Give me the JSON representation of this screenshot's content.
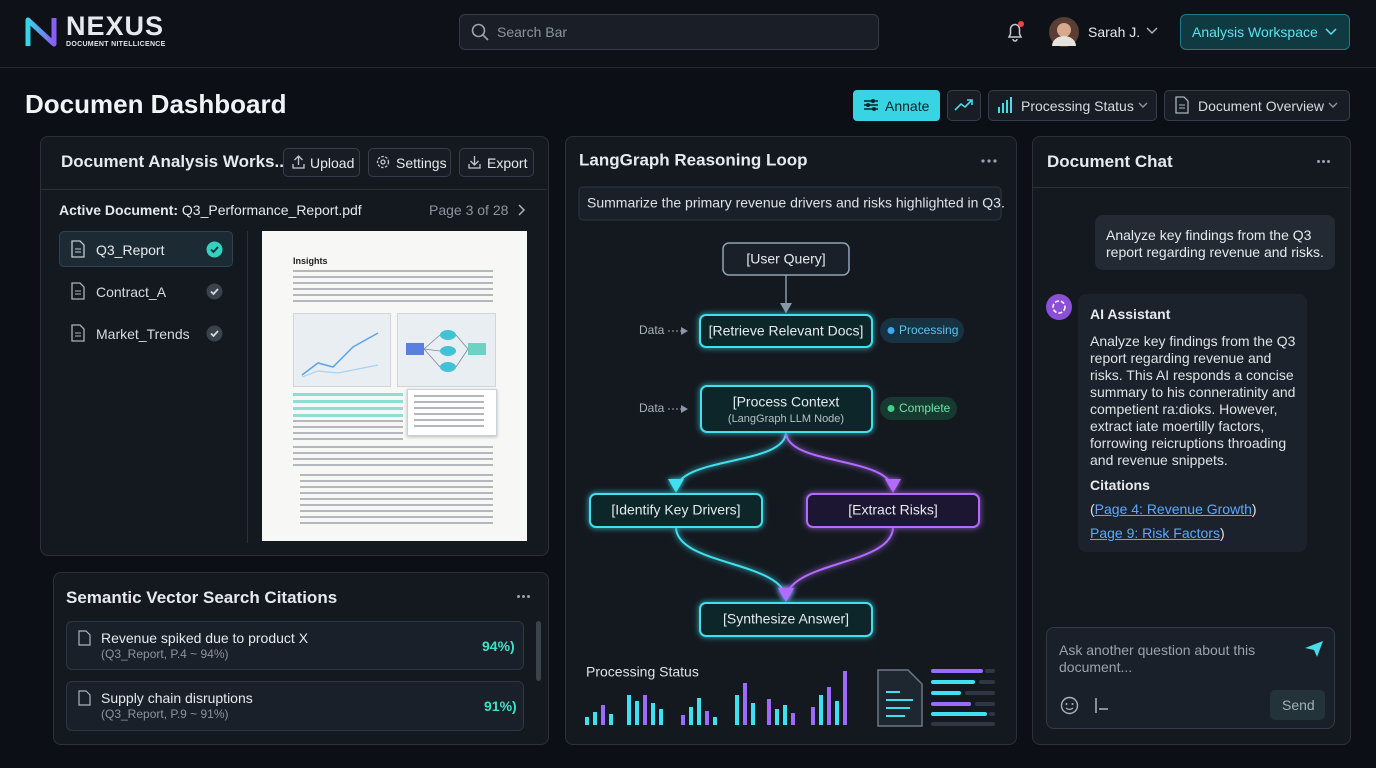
{
  "header": {
    "logo": "NEXUS",
    "tagline": "DOCUMENT NITELLICENCE",
    "search_placeholder": "Search Bar",
    "user": "Sarah J.",
    "workspace": "Analysis Workspace"
  },
  "toolbar": {
    "title": "Documen Dashboard",
    "buttons": [
      "Annate",
      "Processing Status",
      "Document Overview"
    ]
  },
  "analysis_panel": {
    "title": "Document Analysis Works...",
    "actions": [
      "Upload",
      "Settings",
      "Export"
    ],
    "active_label": "Active Document:",
    "active_file": "Q3_Performance_Report.pdf",
    "page": "Page 3 of 28",
    "files": [
      "Q3_Report",
      "Contract_A",
      "Market_Trends"
    ],
    "preview_heading": "Insights"
  },
  "citations_panel": {
    "title": "Semantic Vector Search Citations",
    "items": [
      {
        "text": "Revenue spiked due to product X",
        "source": "(Q3_Report, P.4 ~ 94%)",
        "score": "94%)"
      },
      {
        "text": "Supply chain disruptions",
        "source": "(Q3_Report, P.9 ~ 91%)",
        "score": "91%)"
      }
    ]
  },
  "reasoning_panel": {
    "title": "LangGraph Reasoning Loop",
    "query": "Summarize the primary revenue drivers and risks highlighted in Q3.",
    "nodes": [
      {
        "label": "[User Query]"
      },
      {
        "label": "[Retrieve Relevant Docs]"
      },
      {
        "label": "[Process Context",
        "sublabel": "(LangGraph LLM Node)"
      },
      {
        "label": "[Identify Key Drivers]"
      },
      {
        "label": "[Extract Risks]"
      },
      {
        "label": "[Synthesize Answer]"
      }
    ],
    "inputs": [
      "Data",
      "Data"
    ],
    "badges": [
      "Processing",
      "Complete"
    ],
    "status_label": "Processing Status"
  },
  "chat_panel": {
    "title": "Document Chat",
    "user_message": "Analyze key findings from the Q3 report regarding revenue and risks.",
    "assistant_name": "AI Assistant",
    "assistant_message": "Analyze key findings from the Q3 report regarding revenue and risks. This AI responds a concise summary to his conneratinity and competient ra:dioks. However, extract iate moertilly factors, forrowing reicruptions throading and revenue snippets.",
    "citations_label": "Citations",
    "citations": [
      {
        "prefix": "(",
        "link": "Page 4: Revenue Growth",
        "suffix": ")"
      },
      {
        "prefix": "",
        "link": "Page 9: Risk Factors",
        "suffix": ")"
      }
    ],
    "input_placeholder": "Ask another question about this document...",
    "send": "Send"
  }
}
